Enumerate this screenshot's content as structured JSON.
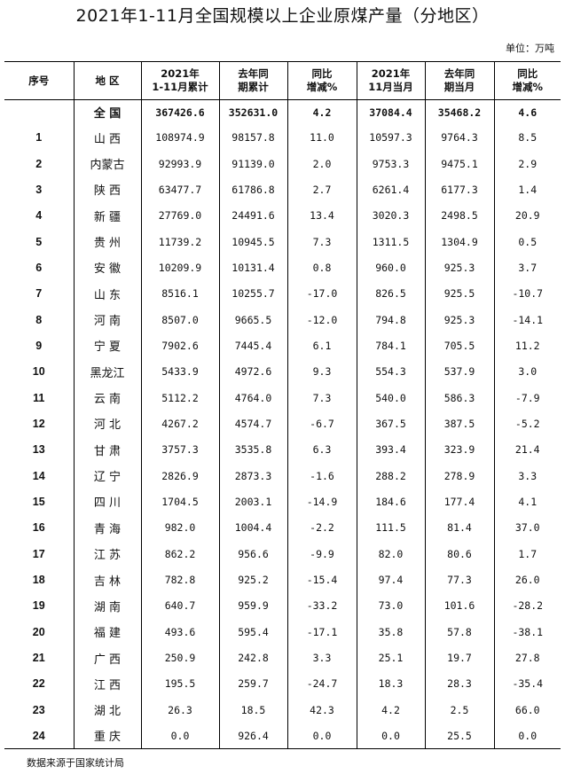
{
  "title": "2021年1-11月全国规模以上企业原煤产量（分地区）",
  "unit": "单位：万吨",
  "columns": [
    "序号",
    "地 区",
    "2021年\n1-11月累计",
    "去年同\n期累计",
    "同比\n增减%",
    "2021年\n11月当月",
    "去年同\n期当月",
    "同比\n增减%"
  ],
  "total": {
    "region": "全 国",
    "values": [
      "367426.6",
      "352631.0",
      "4.2",
      "37084.4",
      "35468.2",
      "4.6"
    ]
  },
  "rows": [
    [
      "1",
      "山 西",
      "108974.9",
      "98157.8",
      "11.0",
      "10597.3",
      "9764.3",
      "8.5"
    ],
    [
      "2",
      "内蒙古",
      "92993.9",
      "91139.0",
      "2.0",
      "9753.3",
      "9475.1",
      "2.9"
    ],
    [
      "3",
      "陕 西",
      "63477.7",
      "61786.8",
      "2.7",
      "6261.4",
      "6177.3",
      "1.4"
    ],
    [
      "4",
      "新 疆",
      "27769.0",
      "24491.6",
      "13.4",
      "3020.3",
      "2498.5",
      "20.9"
    ],
    [
      "5",
      "贵 州",
      "11739.2",
      "10945.5",
      "7.3",
      "1311.5",
      "1304.9",
      "0.5"
    ],
    [
      "6",
      "安 徽",
      "10209.9",
      "10131.4",
      "0.8",
      "960.0",
      "925.3",
      "3.7"
    ],
    [
      "7",
      "山 东",
      "8516.1",
      "10255.7",
      "-17.0",
      "826.5",
      "925.5",
      "-10.7"
    ],
    [
      "8",
      "河 南",
      "8507.0",
      "9665.5",
      "-12.0",
      "794.8",
      "925.3",
      "-14.1"
    ],
    [
      "9",
      "宁 夏",
      "7902.6",
      "7445.4",
      "6.1",
      "784.1",
      "705.5",
      "11.2"
    ],
    [
      "10",
      "黑龙江",
      "5433.9",
      "4972.6",
      "9.3",
      "554.3",
      "537.9",
      "3.0"
    ],
    [
      "11",
      "云 南",
      "5112.2",
      "4764.0",
      "7.3",
      "540.0",
      "586.3",
      "-7.9"
    ],
    [
      "12",
      "河 北",
      "4267.2",
      "4574.7",
      "-6.7",
      "367.5",
      "387.5",
      "-5.2"
    ],
    [
      "13",
      "甘 肃",
      "3757.3",
      "3535.8",
      "6.3",
      "393.4",
      "323.9",
      "21.4"
    ],
    [
      "14",
      "辽 宁",
      "2826.9",
      "2873.3",
      "-1.6",
      "288.2",
      "278.9",
      "3.3"
    ],
    [
      "15",
      "四 川",
      "1704.5",
      "2003.1",
      "-14.9",
      "184.6",
      "177.4",
      "4.1"
    ],
    [
      "16",
      "青 海",
      "982.0",
      "1004.4",
      "-2.2",
      "111.5",
      "81.4",
      "37.0"
    ],
    [
      "17",
      "江 苏",
      "862.2",
      "956.6",
      "-9.9",
      "82.0",
      "80.6",
      "1.7"
    ],
    [
      "18",
      "吉 林",
      "782.8",
      "925.2",
      "-15.4",
      "97.4",
      "77.3",
      "26.0"
    ],
    [
      "19",
      "湖 南",
      "640.7",
      "959.9",
      "-33.2",
      "73.0",
      "101.6",
      "-28.2"
    ],
    [
      "20",
      "福 建",
      "493.6",
      "595.4",
      "-17.1",
      "35.8",
      "57.8",
      "-38.1"
    ],
    [
      "21",
      "广 西",
      "250.9",
      "242.8",
      "3.3",
      "25.1",
      "19.7",
      "27.8"
    ],
    [
      "22",
      "江 西",
      "195.5",
      "259.7",
      "-24.7",
      "18.3",
      "28.3",
      "-35.4"
    ],
    [
      "23",
      "湖 北",
      "26.3",
      "18.5",
      "42.3",
      "4.2",
      "2.5",
      "66.0"
    ],
    [
      "24",
      "重 庆",
      "0.0",
      "926.4",
      "0.0",
      "0.0",
      "25.5",
      "0.0"
    ]
  ],
  "footer": "数据来源于国家统计局"
}
